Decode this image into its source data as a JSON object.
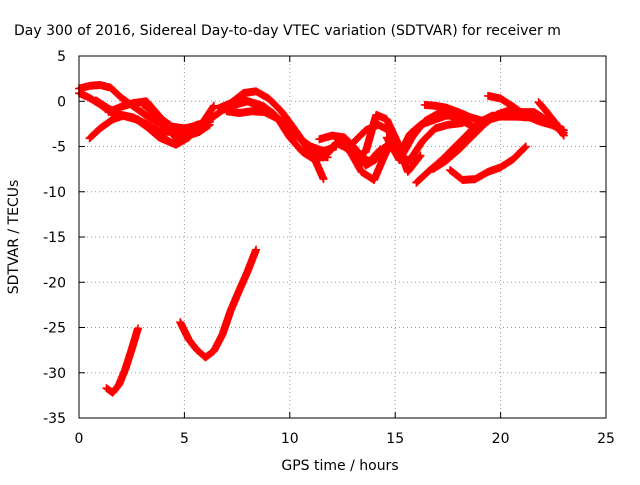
{
  "chart_data": {
    "type": "scatter",
    "title": "Day 300 of 2016, Sidereal Day-to-day VTEC variation (SDTVAR) for receiver m",
    "xlabel": "GPS time / hours",
    "ylabel": "SDTVAR / TECUs",
    "xlim": [
      0,
      25
    ],
    "ylim": [
      -35,
      5
    ],
    "x_ticks": [
      {
        "value": 0,
        "label": "0"
      },
      {
        "value": 5,
        "label": "5"
      },
      {
        "value": 10,
        "label": "10"
      },
      {
        "value": 15,
        "label": "15"
      },
      {
        "value": 20,
        "label": "20"
      },
      {
        "value": 25,
        "label": "25"
      }
    ],
    "y_ticks": [
      {
        "value": 5,
        "label": "5"
      },
      {
        "value": 0,
        "label": "0"
      },
      {
        "value": -5,
        "label": "-5"
      },
      {
        "value": -10,
        "label": "-10"
      },
      {
        "value": -15,
        "label": "-15"
      },
      {
        "value": -20,
        "label": "-20"
      },
      {
        "value": -25,
        "label": "-25"
      },
      {
        "value": -30,
        "label": "-30"
      },
      {
        "value": -35,
        "label": "-35"
      }
    ],
    "grid": true,
    "marker": "plus",
    "colors": {
      "series": "#ff0000",
      "grid": "#999999",
      "axis": "#000000"
    },
    "series": [
      {
        "x": [
          0.0,
          0.5,
          1.0,
          1.5,
          2.0,
          2.6,
          3.2,
          3.8,
          4.4,
          5.0,
          5.6,
          6.1
        ],
        "y": [
          1.4,
          1.7,
          1.8,
          1.5,
          0.4,
          -0.6,
          -1.6,
          -2.4,
          -2.8,
          -3.0,
          -2.7,
          -2.4
        ]
      },
      {
        "x": [
          0.0,
          0.4,
          0.9,
          1.5,
          2.1,
          2.7,
          3.2,
          3.8,
          4.4,
          5.0,
          5.6,
          6.2
        ],
        "y": [
          0.9,
          0.5,
          -0.2,
          -1.2,
          -1.6,
          -2.0,
          -2.5,
          -3.3,
          -3.4,
          -3.2,
          -2.6,
          -2.3
        ]
      },
      {
        "x": [
          0.5,
          1.0,
          1.6,
          2.1,
          2.8,
          3.6,
          4.4,
          5.0,
          5.6,
          6.2
        ],
        "y": [
          -4.1,
          -3.0,
          -2.0,
          -1.6,
          -2.0,
          -3.5,
          -4.6,
          -4.0,
          -2.9,
          -2.2
        ]
      },
      {
        "x": [
          0.8,
          1.4,
          2.0,
          2.6,
          3.2,
          3.8,
          4.6,
          5.2,
          5.8,
          6.4
        ],
        "y": [
          0.1,
          -0.8,
          -1.5,
          -1.8,
          -2.8,
          -4.0,
          -4.8,
          -4.0,
          -2.6,
          -0.5
        ]
      },
      {
        "x": [
          1.4,
          2.0,
          2.6,
          3.2,
          3.8,
          4.4,
          5.0,
          5.6
        ],
        "y": [
          -1.2,
          -0.6,
          -0.2,
          0.0,
          -1.6,
          -3.6,
          -4.1,
          -3.0
        ]
      },
      {
        "x": [
          3.0,
          3.6,
          4.3,
          5.0,
          5.7,
          6.2
        ],
        "y": [
          -0.3,
          -1.4,
          -2.6,
          -3.9,
          -3.4,
          -2.6
        ]
      },
      {
        "x": [
          5.6,
          6.2,
          6.8,
          7.4,
          8.0,
          8.6,
          9.2,
          9.8,
          10.4,
          11.0,
          11.6,
          12.2
        ],
        "y": [
          -2.7,
          -2.0,
          -1.0,
          -0.4,
          0.0,
          -0.4,
          -1.3,
          -2.8,
          -4.0,
          -5.0,
          -5.5,
          -5.0
        ]
      },
      {
        "x": [
          6.6,
          7.2,
          7.8,
          8.4,
          9.0,
          9.6,
          10.2,
          10.8,
          11.3,
          11.8
        ],
        "y": [
          -0.8,
          -0.2,
          0.9,
          1.1,
          0.3,
          -1.1,
          -3.0,
          -5.0,
          -6.0,
          -6.2
        ]
      },
      {
        "x": [
          7.0,
          7.6,
          8.2,
          8.8,
          9.4,
          10.0,
          10.6,
          11.2,
          11.6
        ],
        "y": [
          -1.1,
          -1.3,
          -1.1,
          -1.2,
          -1.9,
          -2.8,
          -4.4,
          -6.5,
          -8.6
        ]
      },
      {
        "x": [
          7.6,
          8.2,
          8.8,
          9.4,
          10.0,
          10.6,
          11.2,
          11.8,
          12.2
        ],
        "y": [
          0.4,
          -0.2,
          -0.6,
          -1.8,
          -4.0,
          -5.6,
          -6.5,
          -5.8,
          -4.6
        ]
      },
      {
        "x": [
          11.0,
          11.6,
          12.2,
          12.8,
          13.3,
          13.8,
          14.3
        ],
        "y": [
          -6.0,
          -6.2,
          -4.6,
          -5.0,
          -6.3,
          -6.6,
          -5.3
        ]
      },
      {
        "x": [
          11.4,
          12.0,
          12.6,
          13.1,
          13.6,
          14.1,
          14.6,
          15.1
        ],
        "y": [
          -4.2,
          -3.8,
          -4.0,
          -5.2,
          -7.1,
          -6.4,
          -4.8,
          -5.5
        ]
      },
      {
        "x": [
          12.2,
          12.8,
          13.4,
          14.0,
          14.4,
          14.8,
          15.2,
          15.6
        ],
        "y": [
          -4.6,
          -5.3,
          -7.8,
          -8.7,
          -6.5,
          -4.5,
          -6.4,
          -6.8
        ]
      },
      {
        "x": [
          12.6,
          13.1,
          13.6,
          14.1,
          14.6,
          15.1,
          15.6,
          16.2
        ],
        "y": [
          -5.0,
          -6.2,
          -5.6,
          -1.5,
          -2.0,
          -4.5,
          -7.8,
          -6.0
        ]
      },
      {
        "x": [
          13.0,
          13.6,
          14.2,
          14.7,
          15.2,
          15.7,
          16.3,
          16.9,
          17.5,
          18.2
        ],
        "y": [
          -4.6,
          -3.2,
          -2.6,
          -3.2,
          -6.3,
          -6.5,
          -4.4,
          -3.0,
          -2.6,
          -2.4
        ]
      },
      {
        "x": [
          14.6,
          15.2,
          15.8,
          16.4,
          17.0,
          17.6,
          18.2,
          18.7
        ],
        "y": [
          -4.0,
          -6.5,
          -4.0,
          -2.2,
          -1.4,
          -1.6,
          -2.2,
          -2.8
        ]
      },
      {
        "x": [
          15.2,
          15.7,
          16.2,
          16.8,
          17.4,
          18.0,
          18.5
        ],
        "y": [
          -6.0,
          -3.6,
          -2.6,
          -2.1,
          -1.6,
          -1.5,
          -1.8
        ]
      },
      {
        "x": [
          16.4,
          16.9,
          17.4,
          18.0,
          18.6,
          19.2,
          19.8,
          20.4,
          21.0
        ],
        "y": [
          -0.4,
          -0.5,
          -0.7,
          -1.2,
          -1.8,
          -2.2,
          -1.8,
          -1.4,
          -1.2
        ]
      },
      {
        "x": [
          16.0,
          16.6,
          17.2,
          17.8,
          18.4,
          19.0,
          19.6,
          20.2,
          20.8,
          21.4,
          22.0,
          22.6,
          23.0
        ],
        "y": [
          -9.0,
          -7.7,
          -6.5,
          -5.1,
          -3.7,
          -2.3,
          -1.6,
          -1.7,
          -1.7,
          -1.8,
          -1.9,
          -2.8,
          -3.5
        ]
      },
      {
        "x": [
          16.8,
          17.4,
          18.0,
          18.6,
          19.2,
          19.8,
          20.4,
          21.0,
          21.6,
          22.2,
          22.8
        ],
        "y": [
          -7.5,
          -6.6,
          -5.4,
          -4.0,
          -2.6,
          -1.5,
          -1.0,
          -1.2,
          -1.2,
          -2.1,
          -2.8
        ]
      },
      {
        "x": [
          17.6,
          18.2,
          18.8,
          19.4,
          20.0,
          20.6,
          21.2
        ],
        "y": [
          -7.6,
          -8.7,
          -8.6,
          -7.8,
          -7.3,
          -6.4,
          -5.0
        ]
      },
      {
        "x": [
          19.4,
          20.0,
          20.6,
          21.2,
          21.8,
          22.4,
          23.0
        ],
        "y": [
          0.6,
          0.3,
          -0.6,
          -1.6,
          -2.2,
          -2.6,
          -3.2
        ]
      },
      {
        "x": [
          21.8,
          22.2,
          22.6,
          23.0
        ],
        "y": [
          -0.1,
          -1.2,
          -2.4,
          -3.8
        ]
      },
      {
        "x": [
          1.3,
          1.6,
          1.9,
          2.2,
          2.5,
          2.8
        ],
        "y": [
          -31.7,
          -32.2,
          -31.3,
          -29.6,
          -27.4,
          -25.1
        ]
      },
      {
        "x": [
          4.8,
          5.2,
          5.6,
          6.0,
          6.4,
          6.8,
          7.2,
          7.6,
          8.0,
          8.4
        ],
        "y": [
          -24.4,
          -26.3,
          -27.5,
          -28.3,
          -27.6,
          -25.8,
          -23.1,
          -20.9,
          -18.8,
          -16.4
        ]
      }
    ]
  }
}
